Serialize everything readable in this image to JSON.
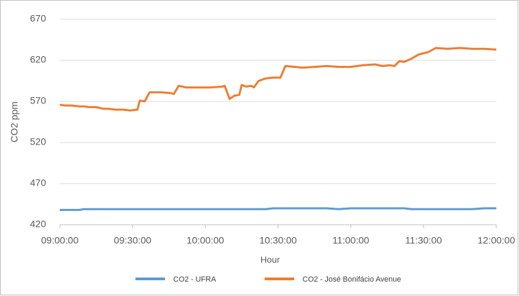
{
  "chart_data": {
    "type": "line",
    "y_label": "CO2 ppm",
    "x_label": "Hour",
    "x": [
      "09:00:00",
      "09:02:00",
      "09:05:00",
      "09:08:00",
      "09:10:00",
      "09:12:00",
      "09:15:00",
      "09:18:00",
      "09:20:00",
      "09:23:00",
      "09:26:00",
      "09:29:00",
      "09:32:00",
      "09:33:00",
      "09:35:00",
      "09:37:00",
      "09:42:00",
      "09:46:00",
      "09:47:00",
      "09:49:00",
      "09:52:00",
      "09:57:00",
      "10:02:00",
      "10:07:00",
      "10:08:00",
      "10:10:00",
      "10:12:00",
      "10:14:00",
      "10:15:00",
      "10:17:00",
      "10:19:00",
      "10:20:00",
      "10:22:00",
      "10:25:00",
      "10:28:00",
      "10:31:00",
      "10:33:00",
      "10:37:00",
      "10:40:00",
      "10:45:00",
      "10:50:00",
      "10:55:00",
      "11:00:00",
      "11:05:00",
      "11:10:00",
      "11:13:00",
      "11:16:00",
      "11:18:00",
      "11:20:00",
      "11:22:00",
      "11:25:00",
      "11:28:00",
      "11:32:00",
      "11:35:00",
      "11:40:00",
      "11:45:00",
      "11:50:00",
      "11:55:00",
      "12:00:00"
    ],
    "series": [
      {
        "name": "CO2 - UFRA",
        "color": "#5b9bd5",
        "values": [
          438,
          438,
          438,
          438,
          439,
          439,
          439,
          439,
          439,
          439,
          439,
          439,
          439,
          439,
          439,
          439,
          439,
          439,
          439,
          439,
          439,
          439,
          439,
          439,
          439,
          439,
          439,
          439,
          439,
          439,
          439,
          439,
          439,
          439,
          440,
          440,
          440,
          440,
          440,
          440,
          440,
          439,
          440,
          440,
          440,
          440,
          440,
          440,
          440,
          440,
          439,
          439,
          439,
          439,
          439,
          439,
          439,
          440,
          440
        ]
      },
      {
        "name": "CO2 - José Bonifácio Avenue",
        "color": "#ed7d31",
        "values": [
          566,
          565,
          565,
          564,
          564,
          563,
          563,
          561,
          561,
          560,
          560,
          559,
          560,
          571,
          570,
          581,
          581,
          580,
          579,
          589,
          587,
          587,
          587,
          588,
          589,
          573,
          577,
          578,
          590,
          588,
          589,
          587,
          595,
          598,
          599,
          599,
          613,
          612,
          611,
          612,
          613,
          612,
          612,
          614,
          615,
          613,
          614,
          613,
          619,
          618,
          622,
          627,
          630,
          635,
          634,
          635,
          634,
          634,
          633
        ]
      }
    ],
    "xlim": [
      "09:00:00",
      "12:00:00"
    ],
    "xticks": [
      "09:00:00",
      "09:30:00",
      "10:00:00",
      "10:30:00",
      "11:00:00",
      "11:30:00",
      "12:00:00"
    ],
    "ylim": [
      420,
      670
    ],
    "yticks": [
      420,
      470,
      520,
      570,
      620,
      670
    ],
    "grid": true
  }
}
